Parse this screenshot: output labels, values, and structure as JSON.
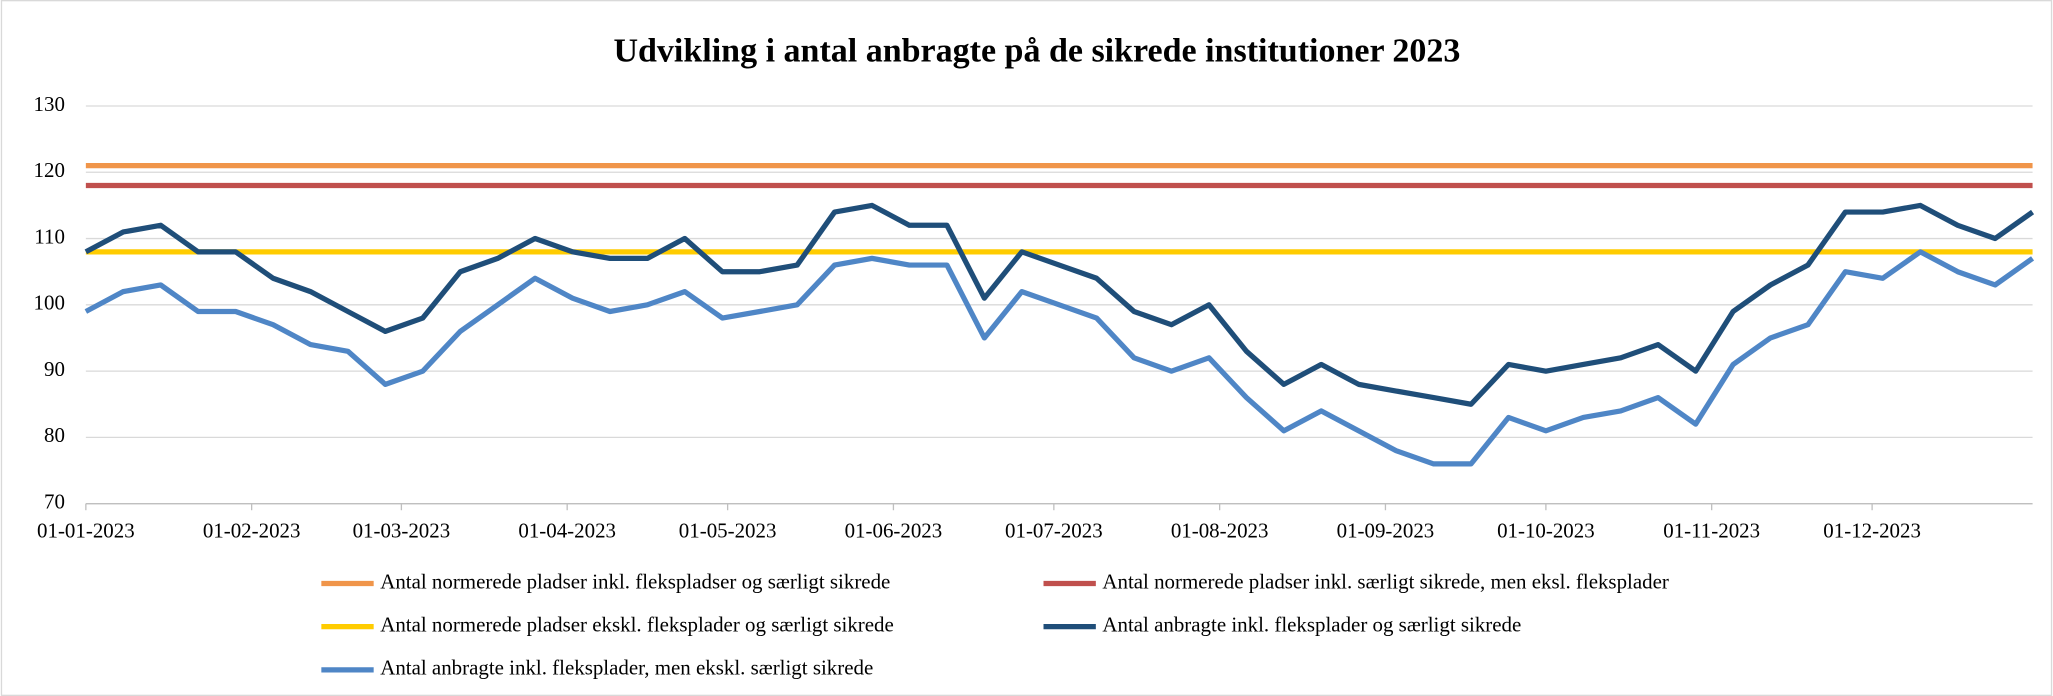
{
  "chart_data": {
    "type": "line",
    "title": "Udvikling i antal anbragte på de sikrede institutioner 2023",
    "x": [
      "01-01-2023",
      "08-01-2023",
      "15-01-2023",
      "22-01-2023",
      "29-01-2023",
      "05-02-2023",
      "12-02-2023",
      "19-02-2023",
      "26-02-2023",
      "05-03-2023",
      "12-03-2023",
      "19-03-2023",
      "26-03-2023",
      "02-04-2023",
      "09-04-2023",
      "16-04-2023",
      "23-04-2023",
      "30-04-2023",
      "07-05-2023",
      "14-05-2023",
      "21-05-2023",
      "28-05-2023",
      "04-06-2023",
      "11-06-2023",
      "18-06-2023",
      "25-06-2023",
      "02-07-2023",
      "09-07-2023",
      "16-07-2023",
      "23-07-2023",
      "30-07-2023",
      "06-08-2023",
      "13-08-2023",
      "20-08-2023",
      "27-08-2023",
      "03-09-2023",
      "10-09-2023",
      "17-09-2023",
      "24-09-2023",
      "01-10-2023",
      "08-10-2023",
      "15-10-2023",
      "22-10-2023",
      "29-10-2023",
      "05-11-2023",
      "12-11-2023",
      "19-11-2023",
      "26-11-2023",
      "03-12-2023",
      "10-12-2023",
      "17-12-2023",
      "24-12-2023",
      "31-12-2023"
    ],
    "xlim": [
      "01-01-2023",
      "31-12-2023"
    ],
    "xticks": [
      "01-01-2023",
      "01-02-2023",
      "01-03-2023",
      "01-04-2023",
      "01-05-2023",
      "01-06-2023",
      "01-07-2023",
      "01-08-2023",
      "01-09-2023",
      "01-10-2023",
      "01-11-2023",
      "01-12-2023"
    ],
    "ylim": [
      70,
      130
    ],
    "yticks": [
      70,
      80,
      90,
      100,
      110,
      120,
      130
    ],
    "grid": true,
    "series": [
      {
        "name": "Antal normerede pladser inkl. flekspladser og særligt sikrede",
        "color": "#f0954a",
        "values": [
          121,
          121,
          121,
          121,
          121,
          121,
          121,
          121,
          121,
          121,
          121,
          121,
          121,
          121,
          121,
          121,
          121,
          121,
          121,
          121,
          121,
          121,
          121,
          121,
          121,
          121,
          121,
          121,
          121,
          121,
          121,
          121,
          121,
          121,
          121,
          121,
          121,
          121,
          121,
          121,
          121,
          121,
          121,
          121,
          121,
          121,
          121,
          121,
          121,
          121,
          121,
          121,
          121
        ]
      },
      {
        "name": "Antal normerede pladser inkl. særligt sikrede, men eksl. fleksplader",
        "color": "#c0504d",
        "values": [
          118,
          118,
          118,
          118,
          118,
          118,
          118,
          118,
          118,
          118,
          118,
          118,
          118,
          118,
          118,
          118,
          118,
          118,
          118,
          118,
          118,
          118,
          118,
          118,
          118,
          118,
          118,
          118,
          118,
          118,
          118,
          118,
          118,
          118,
          118,
          118,
          118,
          118,
          118,
          118,
          118,
          118,
          118,
          118,
          118,
          118,
          118,
          118,
          118,
          118,
          118,
          118,
          118
        ]
      },
      {
        "name": "Antal normerede pladser ekskl. fleksplader og særligt sikrede",
        "color": "#ffcc00",
        "values": [
          108,
          108,
          108,
          108,
          108,
          108,
          108,
          108,
          108,
          108,
          108,
          108,
          108,
          108,
          108,
          108,
          108,
          108,
          108,
          108,
          108,
          108,
          108,
          108,
          108,
          108,
          108,
          108,
          108,
          108,
          108,
          108,
          108,
          108,
          108,
          108,
          108,
          108,
          108,
          108,
          108,
          108,
          108,
          108,
          108,
          108,
          108,
          108,
          108,
          108,
          108,
          108,
          108
        ]
      },
      {
        "name": "Antal anbragte inkl. fleksplader og særligt sikrede",
        "color": "#1f4e79",
        "values": [
          108,
          111,
          112,
          108,
          108,
          104,
          102,
          99,
          96,
          98,
          105,
          107,
          110,
          108,
          107,
          107,
          110,
          105,
          105,
          106,
          114,
          115,
          112,
          112,
          101,
          108,
          106,
          104,
          99,
          97,
          100,
          93,
          88,
          91,
          88,
          87,
          86,
          85,
          91,
          90,
          91,
          92,
          94,
          90,
          99,
          103,
          106,
          114,
          114,
          115,
          112,
          110,
          114
        ]
      },
      {
        "name": "Antal anbragte inkl. fleksplader, men ekskl. særligt sikrede",
        "color": "#4f86c6",
        "values": [
          99,
          102,
          103,
          99,
          99,
          97,
          94,
          93,
          88,
          90,
          96,
          100,
          104,
          101,
          99,
          100,
          102,
          98,
          99,
          100,
          106,
          107,
          106,
          106,
          95,
          102,
          100,
          98,
          92,
          90,
          92,
          86,
          81,
          84,
          81,
          78,
          76,
          76,
          83,
          81,
          83,
          84,
          86,
          82,
          91,
          95,
          97,
          105,
          104,
          108,
          105,
          103,
          107
        ]
      }
    ]
  }
}
